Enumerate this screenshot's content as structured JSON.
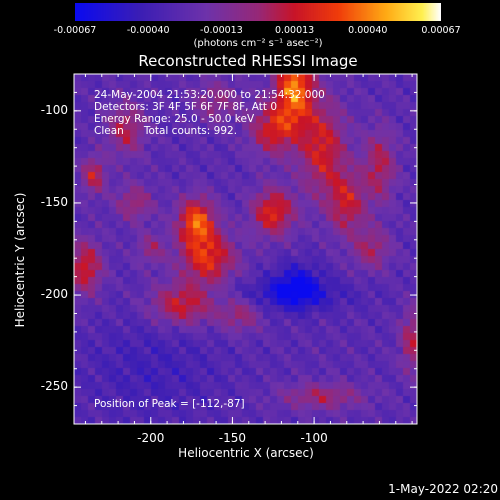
{
  "colorbar": {
    "ticks": [
      "-0.00067",
      "-0.00040",
      "-0.00013",
      "0.00013",
      "0.00040",
      "0.00067"
    ],
    "unit_label": "(photons cm⁻² s⁻¹ asec⁻²)"
  },
  "title": "Reconstructed RHESSI Image",
  "annotations": [
    "24-May-2004 21:53:20.000 to 21:54:32.000",
    "Detectors: 3F 4F 5F 6F 7F 8F, Att 0",
    "Energy Range: 25.0 - 50.0 keV",
    "Clean      Total counts: 992."
  ],
  "peak_text": "Position of Peak = [-112,-87]",
  "timestamp": "1-May-2022 02:20",
  "chart_data": {
    "type": "heatmap",
    "xlabel": "Heliocentric X (arcsec)",
    "ylabel": "Heliocentric Y (arcsec)",
    "xlim": [
      -247,
      -37
    ],
    "ylim": [
      -270,
      -80
    ],
    "xticks": [
      -200,
      -150,
      -100
    ],
    "yticks": [
      -100,
      -150,
      -200,
      -250
    ],
    "colorbar_range": [
      -0.00067,
      0.00067
    ],
    "peak": [
      -112,
      -87
    ],
    "blobs": [
      {
        "x": -112,
        "y": -87,
        "sx": 8,
        "sy": 14,
        "v": 0.00067
      },
      {
        "x": -125,
        "y": -110,
        "sx": 10,
        "sy": 10,
        "v": 0.00045
      },
      {
        "x": -172,
        "y": -160,
        "sx": 8,
        "sy": 9,
        "v": 0.0006
      },
      {
        "x": -165,
        "y": -180,
        "sx": 12,
        "sy": 10,
        "v": 0.0005
      },
      {
        "x": -180,
        "y": -205,
        "sx": 14,
        "sy": 8,
        "v": 0.00045
      },
      {
        "x": -125,
        "y": -155,
        "sx": 9,
        "sy": 9,
        "v": 0.0005
      },
      {
        "x": -95,
        "y": -120,
        "sx": 10,
        "sy": 18,
        "v": 0.00045
      },
      {
        "x": -80,
        "y": -150,
        "sx": 8,
        "sy": 12,
        "v": 0.0004
      },
      {
        "x": -60,
        "y": -130,
        "sx": 7,
        "sy": 14,
        "v": 0.00035
      },
      {
        "x": -240,
        "y": -185,
        "sx": 7,
        "sy": 10,
        "v": 0.00045
      },
      {
        "x": -210,
        "y": -150,
        "sx": 8,
        "sy": 7,
        "v": 0.0003
      },
      {
        "x": -215,
        "y": -110,
        "sx": 8,
        "sy": 10,
        "v": 0.00035
      },
      {
        "x": -235,
        "y": -135,
        "sx": 5,
        "sy": 7,
        "v": 0.0004
      },
      {
        "x": -145,
        "y": -210,
        "sx": 9,
        "sy": 7,
        "v": 0.0003
      },
      {
        "x": -65,
        "y": -175,
        "sx": 8,
        "sy": 8,
        "v": 0.0003
      },
      {
        "x": -40,
        "y": -225,
        "sx": 5,
        "sy": 12,
        "v": 0.00035
      },
      {
        "x": -95,
        "y": -255,
        "sx": 18,
        "sy": 5,
        "v": 0.0003
      },
      {
        "x": -160,
        "y": -95,
        "sx": 10,
        "sy": 8,
        "v": 0.00025
      },
      {
        "x": -200,
        "y": -175,
        "sx": 6,
        "sy": 6,
        "v": 0.00025
      },
      {
        "x": -120,
        "y": -200,
        "sx": 30,
        "sy": 6,
        "v": -0.0002
      },
      {
        "x": -200,
        "y": -240,
        "sx": 30,
        "sy": 20,
        "v": -0.00012
      },
      {
        "x": -110,
        "y": -195,
        "sx": 10,
        "sy": 8,
        "v": -0.00035
      }
    ]
  }
}
